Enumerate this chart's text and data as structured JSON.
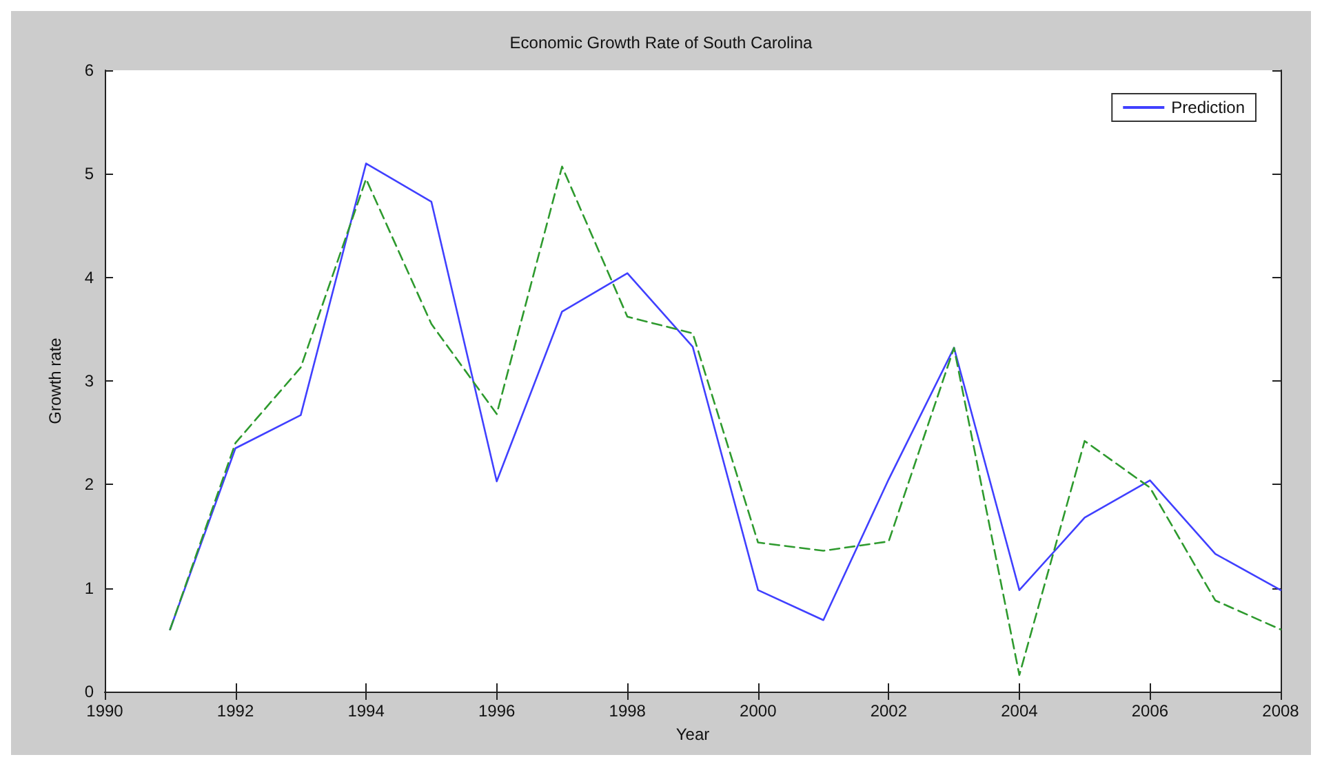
{
  "chart_data": {
    "type": "line",
    "title": "Economic Growth Rate of South Carolina",
    "xlabel": "Year",
    "ylabel": "Growth rate",
    "x": [
      1991,
      1992,
      1993,
      1994,
      1995,
      1996,
      1997,
      1998,
      1999,
      2000,
      2001,
      2002,
      2003,
      2004,
      2005,
      2006,
      2007,
      2008
    ],
    "series": [
      {
        "name": "Prediction",
        "color": "#4040ff",
        "line_style": "solid",
        "values": [
          0.6,
          2.35,
          2.67,
          5.1,
          4.73,
          2.03,
          3.67,
          4.04,
          3.33,
          0.98,
          0.69,
          2.05,
          3.32,
          0.98,
          1.68,
          2.04,
          1.33,
          0.98
        ]
      },
      {
        "color": "#2e9a2e",
        "line_style": "dashed",
        "values": [
          0.6,
          2.4,
          3.13,
          4.95,
          3.55,
          2.68,
          5.07,
          3.62,
          3.46,
          1.44,
          1.36,
          1.45,
          3.32,
          0.16,
          2.42,
          1.97,
          0.88,
          0.6
        ]
      }
    ],
    "xlim": [
      1990,
      2008
    ],
    "xticks": [
      1990,
      1992,
      1994,
      1996,
      1998,
      2000,
      2002,
      2004,
      2006,
      2008
    ],
    "ylim": [
      0,
      6
    ],
    "yticks": [
      0,
      1,
      2,
      3,
      4,
      5,
      6
    ],
    "grid": false,
    "legend": "top right",
    "marker": "none"
  }
}
